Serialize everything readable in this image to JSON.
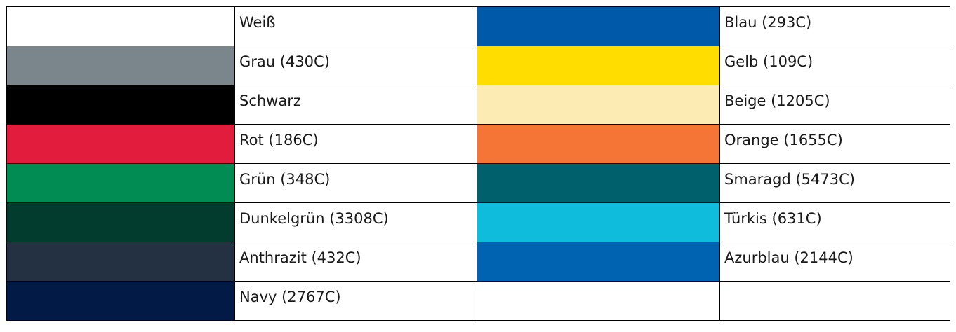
{
  "rows": [
    {
      "left": {
        "label": "Weiß",
        "color": "#ffffff"
      },
      "right": {
        "label": "Blau (293C)",
        "color": "#005aaa"
      }
    },
    {
      "left": {
        "label": "Grau (430C)",
        "color": "#7b868c"
      },
      "right": {
        "label": "Gelb (109C)",
        "color": "#ffdd00"
      }
    },
    {
      "left": {
        "label": "Schwarz",
        "color": "#000000"
      },
      "right": {
        "label": "Beige (1205C)",
        "color": "#fdebb4"
      }
    },
    {
      "left": {
        "label": "Rot (186C)",
        "color": "#e11c3c"
      },
      "right": {
        "label": "Orange (1655C)",
        "color": "#f47536"
      }
    },
    {
      "left": {
        "label": "Grün (348C)",
        "color": "#008c52"
      },
      "right": {
        "label": "Smaragd (5473C)",
        "color": "#00606c"
      }
    },
    {
      "left": {
        "label": "Dunkelgrün (3308C)",
        "color": "#013c2e"
      },
      "right": {
        "label": "Türkis (631C)",
        "color": "#10bcdc"
      }
    },
    {
      "left": {
        "label": "Anthrazit (432C)",
        "color": "#233142"
      },
      "right": {
        "label": "Azurblau (2144C)",
        "color": "#0063b2"
      }
    },
    {
      "left": {
        "label": "Navy (2767C)",
        "color": "#021a46"
      },
      "right": {
        "label": "",
        "color": "#ffffff"
      }
    }
  ]
}
